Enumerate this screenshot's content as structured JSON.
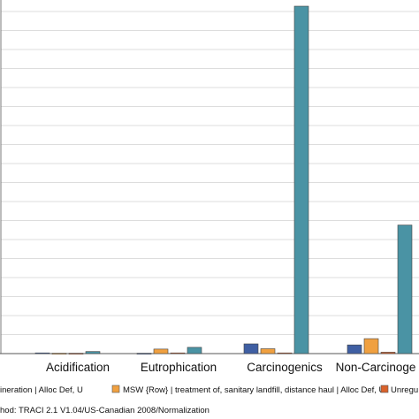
{
  "chart_data": {
    "type": "bar",
    "categories": [
      "",
      "Acidification",
      "Eutrophication",
      "Carcinogenics",
      "Non-Carcinogenics"
    ],
    "category_labels": [
      "",
      "Acidification",
      "Eutrophication",
      "Carcinogenics",
      "Non-Carcinoge"
    ],
    "series": [
      {
        "name": "",
        "color": "#3f5fa3",
        "values": [
          0.003,
          0.002,
          0.001,
          0.028,
          0.025
        ]
      },
      {
        "name": "",
        "color": "#f0a040",
        "values": [
          0.0,
          0.001,
          0.013,
          0.014,
          0.043
        ]
      },
      {
        "name": "",
        "color": "#d9622b",
        "values": [
          0.0,
          0.001,
          0.002,
          0.002,
          0.004
        ]
      },
      {
        "name": "",
        "color": "#4a93a4",
        "values": [
          0.0,
          0.006,
          0.018,
          1.0,
          0.37
        ]
      }
    ],
    "ylim": [
      0,
      1.0
    ],
    "grid": true,
    "title": "",
    "xlabel": "",
    "ylabel": ""
  },
  "legend": {
    "items": [
      {
        "label": "ineration | Alloc Def, U",
        "color": "#3f5fa3"
      },
      {
        "label": "MSW {Row} | treatment of, sanitary landfill, distance haul | Alloc Def, U",
        "color": "#f0a040"
      },
      {
        "label": "Unregu",
        "color": "#d9622b"
      }
    ]
  },
  "method_line": "hod: TRACI 2.1 V1.04/US-Canadian 2008/Normalization"
}
